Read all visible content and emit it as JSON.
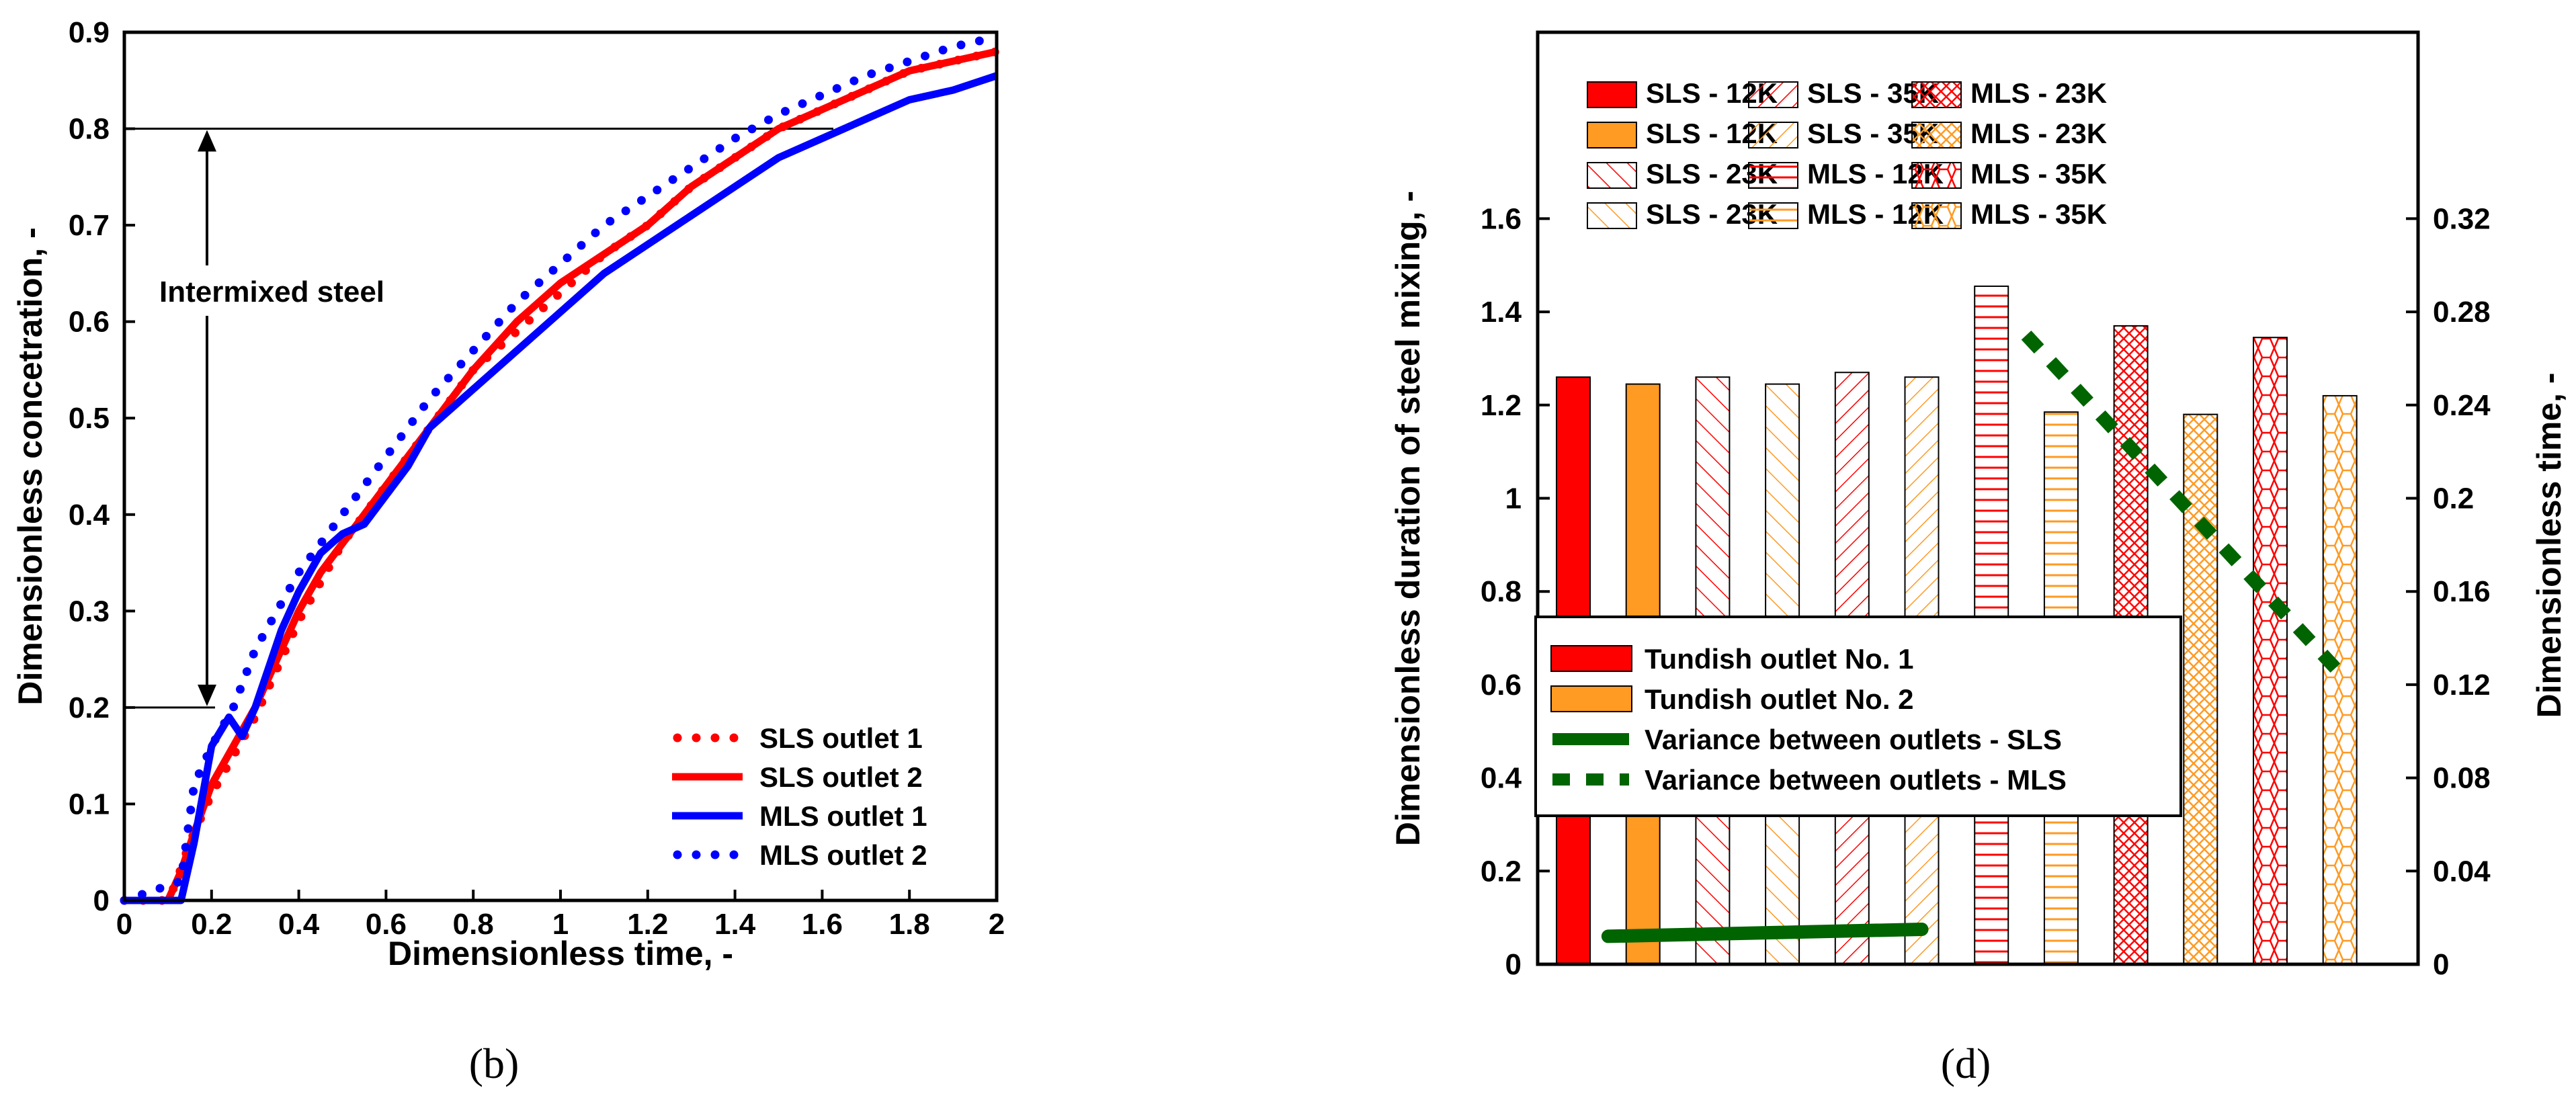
{
  "chart_data": [
    {
      "type": "line",
      "panel_label": "b",
      "xlabel": "Dimensionless time, -",
      "ylabel": "Dimensionless concetration, -",
      "xlim": [
        0,
        2
      ],
      "ylim": [
        0,
        0.9
      ],
      "xticks": [
        "0",
        "0.2",
        "0.4",
        "0.6",
        "0.8",
        "1",
        "1.2",
        "1.4",
        "1.6",
        "1.8",
        "2"
      ],
      "yticks": [
        "0",
        "0.1",
        "0.2",
        "0.3",
        "0.4",
        "0.5",
        "0.6",
        "0.7",
        "0.8",
        "0.9"
      ],
      "annotation": {
        "text": "Intermixed steel",
        "from": 0.2,
        "to": 0.8
      },
      "reference_lines": [
        0.2,
        0.8
      ],
      "legend_position": "bottom-right",
      "series": [
        {
          "name": "SLS outlet 1",
          "color": "#ff0000",
          "style": "dotted",
          "x": [
            0,
            0.1,
            0.12,
            0.15,
            0.2,
            0.25,
            0.3,
            0.35,
            0.4,
            0.45,
            0.5,
            0.55,
            0.6,
            0.7,
            0.8,
            0.9,
            1.0,
            1.1,
            1.2,
            1.3,
            1.4,
            1.5,
            1.6,
            1.7,
            1.8,
            1.9,
            2.0
          ],
          "y": [
            0,
            0,
            0.02,
            0.06,
            0.11,
            0.15,
            0.19,
            0.24,
            0.29,
            0.33,
            0.37,
            0.4,
            0.43,
            0.49,
            0.55,
            0.59,
            0.63,
            0.67,
            0.7,
            0.74,
            0.77,
            0.8,
            0.82,
            0.84,
            0.86,
            0.87,
            0.88
          ]
        },
        {
          "name": "SLS outlet 2",
          "color": "#ff0000",
          "style": "solid",
          "x": [
            0,
            0.1,
            0.13,
            0.16,
            0.2,
            0.25,
            0.3,
            0.35,
            0.4,
            0.45,
            0.5,
            0.55,
            0.6,
            0.7,
            0.8,
            0.9,
            1.0,
            1.1,
            1.2,
            1.3,
            1.4,
            1.5,
            1.6,
            1.7,
            1.8,
            1.9,
            2.0
          ],
          "y": [
            0,
            0,
            0.03,
            0.07,
            0.12,
            0.16,
            0.2,
            0.25,
            0.3,
            0.34,
            0.37,
            0.4,
            0.43,
            0.49,
            0.55,
            0.6,
            0.64,
            0.67,
            0.7,
            0.74,
            0.77,
            0.8,
            0.82,
            0.84,
            0.86,
            0.87,
            0.88
          ]
        },
        {
          "name": "MLS outlet 1",
          "color": "#0000ff",
          "style": "solid",
          "x": [
            0,
            0.13,
            0.16,
            0.2,
            0.24,
            0.27,
            0.3,
            0.33,
            0.36,
            0.4,
            0.45,
            0.5,
            0.55,
            0.6,
            0.65,
            0.7,
            0.8,
            0.9,
            1.0,
            1.1,
            1.2,
            1.3,
            1.4,
            1.5,
            1.6,
            1.7,
            1.8,
            1.9,
            2.0
          ],
          "y": [
            0,
            0,
            0.06,
            0.16,
            0.19,
            0.17,
            0.2,
            0.24,
            0.28,
            0.32,
            0.36,
            0.38,
            0.39,
            0.42,
            0.45,
            0.49,
            0.53,
            0.57,
            0.61,
            0.65,
            0.68,
            0.71,
            0.74,
            0.77,
            0.79,
            0.81,
            0.83,
            0.84,
            0.855
          ]
        },
        {
          "name": "MLS outlet 2",
          "color": "#0000ff",
          "style": "dotted",
          "x": [
            0,
            0.13,
            0.16,
            0.2,
            0.25,
            0.3,
            0.35,
            0.4,
            0.45,
            0.5,
            0.55,
            0.6,
            0.7,
            0.8,
            0.9,
            1.0,
            1.1,
            1.2,
            1.3,
            1.4,
            1.5,
            1.6,
            1.7,
            1.8,
            1.9,
            2.0
          ],
          "y": [
            0,
            0.02,
            0.12,
            0.16,
            0.2,
            0.26,
            0.3,
            0.34,
            0.37,
            0.4,
            0.43,
            0.46,
            0.52,
            0.57,
            0.62,
            0.66,
            0.7,
            0.73,
            0.76,
            0.79,
            0.815,
            0.835,
            0.855,
            0.87,
            0.885,
            0.895
          ]
        }
      ]
    },
    {
      "type": "bar",
      "panel_label": "d",
      "ylabel": "Dimensionless duration of steel mixing, -",
      "ylabel_right": "Dimensionless time, -",
      "ylim": [
        0,
        2.0
      ],
      "ylim_right": [
        0,
        0.4
      ],
      "yticks": [
        "0",
        "0.2",
        "0.4",
        "0.6",
        "0.8",
        "1",
        "1.2",
        "1.4",
        "1.6"
      ],
      "yticks_right": [
        "0",
        "0.04",
        "0.08",
        "0.12",
        "0.16",
        "0.2",
        "0.24",
        "0.28",
        "0.32"
      ],
      "bars": [
        {
          "label": "SLS - 12K",
          "value": 1.26,
          "color": "#ff0000",
          "pattern": "solid"
        },
        {
          "label": "SLS - 12K",
          "value": 1.245,
          "color": "#ff9a22",
          "pattern": "solid"
        },
        {
          "label": "SLS - 23K",
          "value": 1.26,
          "color": "#ff0000",
          "pattern": "diag"
        },
        {
          "label": "SLS - 23K",
          "value": 1.245,
          "color": "#ff9a22",
          "pattern": "diag"
        },
        {
          "label": "SLS - 35K",
          "value": 1.27,
          "color": "#ff0000",
          "pattern": "diag2"
        },
        {
          "label": "SLS - 35K",
          "value": 1.26,
          "color": "#ff9a22",
          "pattern": "diag2"
        },
        {
          "label": "MLS - 12K",
          "value": 1.455,
          "color": "#ff0000",
          "pattern": "horiz"
        },
        {
          "label": "MLS - 12K",
          "value": 1.185,
          "color": "#ff9a22",
          "pattern": "horiz"
        },
        {
          "label": "MLS - 23K",
          "value": 1.37,
          "color": "#ff0000",
          "pattern": "cross"
        },
        {
          "label": "MLS - 23K",
          "value": 1.18,
          "color": "#ff9a22",
          "pattern": "cross"
        },
        {
          "label": "MLS - 35K",
          "value": 1.345,
          "color": "#ff0000",
          "pattern": "hex"
        },
        {
          "label": "MLS - 35K",
          "value": 1.22,
          "color": "#ff9a22",
          "pattern": "hex"
        }
      ],
      "pattern_legend": [
        [
          "SLS - 12K",
          "SLS - 35K",
          "MLS - 23K"
        ],
        [
          "SLS - 12K",
          "SLS - 35K",
          "MLS - 23K"
        ],
        [
          "SLS - 23K",
          "MLS - 12K",
          "MLS - 35K"
        ],
        [
          "SLS - 23K",
          "MLS - 12K",
          "MLS - 35K"
        ]
      ],
      "lines": [
        {
          "name": "Variance between outlets - SLS",
          "color": "#006400",
          "style": "solid",
          "x_bar_index": [
            0.5,
            5.0
          ],
          "y_right": [
            0.012,
            0.015
          ]
        },
        {
          "name": "Variance between outlets - MLS",
          "color": "#006400",
          "style": "dashed",
          "x_bar_index": [
            6.5,
            11.0
          ],
          "y_right": [
            0.27,
            0.125
          ]
        }
      ],
      "legend": [
        {
          "label": "Tundish outlet No. 1",
          "kind": "box",
          "color": "#ff0000"
        },
        {
          "label": "Tundish outlet No. 2",
          "kind": "box",
          "color": "#ff9a22"
        },
        {
          "label": "Variance between outlets - SLS",
          "kind": "line",
          "color": "#006400",
          "style": "solid"
        },
        {
          "label": "Variance between outlets - MLS",
          "kind": "line",
          "color": "#006400",
          "style": "dashed"
        }
      ]
    }
  ]
}
